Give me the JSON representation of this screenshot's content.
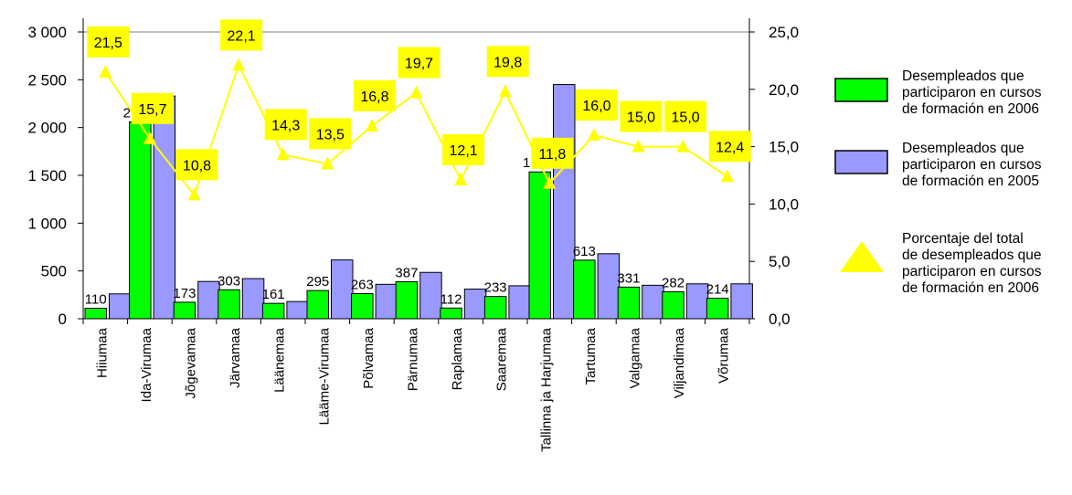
{
  "chart_data": {
    "type": "bar",
    "categories": [
      "Hiiumaa",
      "Ida-Virumaa",
      "Jõgevamaa",
      "Järvamaa",
      "Läänemaa",
      "Lääme-Virumaa",
      "Põlvamaa",
      "Pärnumaa",
      "Raplamaa",
      "Saaremaa",
      "Tallinna ja Harjumaa",
      "Tartumaa",
      "Valgamaa",
      "Viljandimaa",
      "Võrumaa"
    ],
    "series": [
      {
        "name": "Desempleados que participaron en cursos de formación en 2006",
        "type": "bar",
        "axis": "left",
        "color": "#00ff00",
        "values": [
          110,
          2060,
          173,
          303,
          161,
          295,
          263,
          387,
          112,
          233,
          1536,
          613,
          331,
          282,
          214
        ],
        "labels": [
          "110",
          "2 060",
          "173",
          "303",
          "161",
          "295",
          "263",
          "387",
          "112",
          "233",
          "1 536",
          "613",
          "331",
          "282",
          "214"
        ]
      },
      {
        "name": "Desempleados que participaron en cursos de formación en 2005",
        "type": "bar",
        "axis": "left",
        "color": "#9999ff",
        "values": [
          260,
          2330,
          390,
          420,
          180,
          615,
          360,
          485,
          310,
          345,
          2450,
          680,
          350,
          365,
          365
        ]
      },
      {
        "name": "Porcentaje del total de desempleados que participaron en cursos de formación en 2006",
        "type": "line",
        "axis": "right",
        "color": "#ffff00",
        "values": [
          21.5,
          15.7,
          10.8,
          22.1,
          14.3,
          13.5,
          16.8,
          19.7,
          12.1,
          19.8,
          11.8,
          16.0,
          15.0,
          15.0,
          12.4
        ],
        "labels": [
          "21,5",
          "15,7",
          "10,8",
          "22,1",
          "14,3",
          "13,5",
          "16,8",
          "19,7",
          "12,1",
          "19,8",
          "11,8",
          "16,0",
          "15,0",
          "15,0",
          "12,4"
        ]
      }
    ],
    "y_left": {
      "min": 0,
      "max": 3000,
      "ticks": [
        0,
        500,
        1000,
        1500,
        2000,
        2500,
        3000
      ],
      "tick_labels": [
        "0",
        "500",
        "1 000",
        "1 500",
        "2 000",
        "2 500",
        "3 000"
      ]
    },
    "y_right": {
      "min": 0,
      "max": 25,
      "ticks": [
        0,
        5,
        10,
        15,
        20,
        25
      ],
      "tick_labels": [
        "0,0",
        "5,0",
        "10,0",
        "15,0",
        "20,0",
        "25,0"
      ]
    },
    "legend": {
      "position": "right",
      "items": [
        {
          "lines": [
            "Desempleados que",
            "participaron en cursos",
            "de formación en 2006"
          ],
          "color": "#00ff00",
          "shape": "bar"
        },
        {
          "lines": [
            "Desempleados que",
            "participaron en cursos",
            "de formación en 2005"
          ],
          "color": "#9999ff",
          "shape": "bar"
        },
        {
          "lines": [
            "Porcentaje del total",
            "de desempleados que",
            "participaron en cursos",
            "de formación en 2006"
          ],
          "color": "#ffff00",
          "shape": "triangle"
        }
      ]
    },
    "grid": false,
    "title": "",
    "xlabel": "",
    "ylabel": ""
  }
}
